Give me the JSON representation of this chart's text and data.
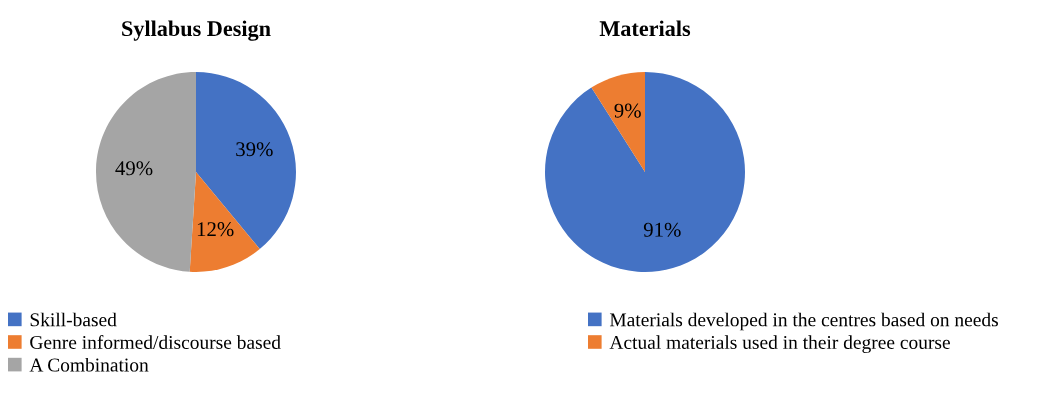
{
  "chart_data": [
    {
      "type": "pie",
      "title": "Syllabus Design",
      "categories": [
        "Skill-based",
        "Genre informed/discourse based",
        "A Combination"
      ],
      "values": [
        39,
        12,
        49
      ],
      "colors": [
        "#4472c4",
        "#ed7d31",
        "#a5a5a5"
      ],
      "value_labels": [
        "39%",
        "12%",
        "49%"
      ],
      "legend": "bottom"
    },
    {
      "type": "pie",
      "title": "Materials",
      "categories": [
        "Materials developed in the centres based on needs",
        "Actual materials used in their degree course"
      ],
      "values": [
        91,
        9
      ],
      "colors": [
        "#4472c4",
        "#ed7d31"
      ],
      "value_labels": [
        "91%",
        "9%"
      ],
      "legend": "bottom"
    }
  ]
}
